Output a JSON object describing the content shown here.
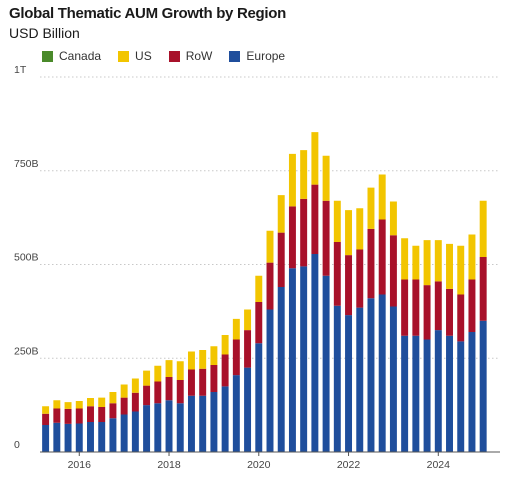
{
  "chart_data": {
    "type": "bar",
    "stacked": true,
    "title": "Global Thematic AUM Growth by Region",
    "subtitle": "USD Billion",
    "xlabel": "",
    "ylabel": "",
    "ylim": [
      0,
      1000
    ],
    "yticks": [
      0,
      250,
      500,
      750,
      1000
    ],
    "ytick_labels": [
      "0",
      "250B",
      "500B",
      "750B",
      "1T"
    ],
    "xtick_labels": [
      "2016",
      "2018",
      "2020",
      "2022",
      "2024"
    ],
    "xtick_positions": [
      "2016Q1",
      "2018Q1",
      "2020Q1",
      "2022Q1",
      "2024Q1"
    ],
    "legend_position": "top-left",
    "grid": "horizontal dotted",
    "categories": [
      "2015Q2",
      "2015Q3",
      "2015Q4",
      "2016Q1",
      "2016Q2",
      "2016Q3",
      "2016Q4",
      "2017Q1",
      "2017Q2",
      "2017Q3",
      "2017Q4",
      "2018Q1",
      "2018Q2",
      "2018Q3",
      "2018Q4",
      "2019Q1",
      "2019Q2",
      "2019Q3",
      "2019Q4",
      "2020Q1",
      "2020Q2",
      "2020Q3",
      "2020Q4",
      "2021Q1",
      "2021Q2",
      "2021Q3",
      "2021Q4",
      "2022Q1",
      "2022Q2",
      "2022Q3",
      "2022Q4",
      "2023Q1",
      "2023Q2",
      "2023Q3",
      "2023Q4",
      "2024Q1",
      "2024Q2",
      "2024Q3",
      "2024Q4",
      "2025Q1",
      "2025Q2"
    ],
    "series": [
      {
        "name": "Europe",
        "color": "#1f4e9c",
        "values": [
          72,
          78,
          75,
          76,
          80,
          80,
          90,
          100,
          108,
          125,
          130,
          138,
          130,
          150,
          150,
          160,
          175,
          205,
          225,
          290,
          380,
          440,
          490,
          495,
          528,
          470,
          390,
          365,
          385,
          410,
          420,
          388,
          310,
          310,
          300,
          325,
          310,
          295,
          320,
          350,
          0
        ]
      },
      {
        "name": "RoW",
        "color": "#a8112a",
        "values": [
          30,
          38,
          40,
          40,
          42,
          40,
          40,
          45,
          50,
          52,
          58,
          62,
          62,
          70,
          72,
          72,
          85,
          95,
          100,
          110,
          125,
          145,
          165,
          180,
          185,
          200,
          170,
          160,
          155,
          185,
          200,
          190,
          150,
          150,
          145,
          130,
          125,
          125,
          140,
          170,
          0
        ]
      },
      {
        "name": "US",
        "color": "#f2c500",
        "values": [
          20,
          22,
          18,
          20,
          22,
          25,
          30,
          35,
          38,
          40,
          42,
          45,
          50,
          48,
          50,
          50,
          52,
          55,
          55,
          70,
          85,
          100,
          140,
          130,
          140,
          120,
          110,
          120,
          110,
          110,
          120,
          90,
          110,
          90,
          120,
          110,
          120,
          130,
          120,
          150,
          0
        ]
      },
      {
        "name": "Canada",
        "color": "#4a8a2a",
        "values": [
          0,
          0,
          0,
          0,
          0,
          0,
          0,
          0,
          0,
          0,
          0,
          0,
          0,
          0,
          0,
          0,
          0,
          0,
          0,
          0,
          0,
          0,
          0,
          0,
          0,
          0,
          0,
          0,
          0,
          0,
          0,
          0,
          0,
          0,
          0,
          0,
          0,
          0,
          0,
          0,
          0
        ]
      }
    ],
    "legend_order": [
      "Canada",
      "US",
      "RoW",
      "Europe"
    ]
  }
}
